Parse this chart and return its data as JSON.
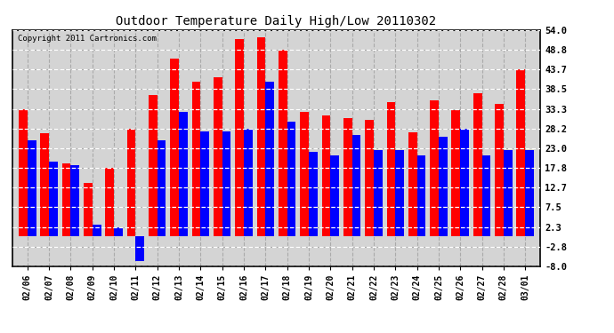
{
  "title": "Outdoor Temperature Daily High/Low 20110302",
  "copyright": "Copyright 2011 Cartronics.com",
  "dates": [
    "02/06",
    "02/07",
    "02/08",
    "02/09",
    "02/10",
    "02/11",
    "02/12",
    "02/13",
    "02/14",
    "02/15",
    "02/16",
    "02/17",
    "02/18",
    "02/19",
    "02/20",
    "02/21",
    "02/22",
    "02/23",
    "02/24",
    "02/25",
    "02/26",
    "02/27",
    "02/28",
    "03/01"
  ],
  "highs": [
    33.3,
    27.0,
    19.0,
    14.0,
    17.8,
    28.2,
    37.0,
    46.5,
    40.5,
    41.5,
    51.5,
    52.0,
    48.8,
    32.5,
    31.5,
    31.0,
    30.5,
    35.0,
    27.2,
    35.5,
    33.0,
    37.5,
    34.5,
    43.7
  ],
  "lows": [
    25.0,
    19.5,
    18.5,
    3.0,
    2.3,
    -6.5,
    25.0,
    32.5,
    27.5,
    27.5,
    28.2,
    40.5,
    30.0,
    22.0,
    21.0,
    26.5,
    22.5,
    22.5,
    21.0,
    26.0,
    28.2,
    21.0,
    22.5,
    22.5
  ],
  "high_color": "#ff0000",
  "low_color": "#0000ff",
  "plot_bg_color": "#d4d4d4",
  "fig_bg_color": "#ffffff",
  "grid_color_dash": "#aaaaaa",
  "grid_color_white": "#ffffff",
  "yticks": [
    -8.0,
    -2.8,
    2.3,
    7.5,
    12.7,
    17.8,
    23.0,
    28.2,
    33.3,
    38.5,
    43.7,
    48.8,
    54.0
  ],
  "ylim": [
    -8.0,
    54.0
  ],
  "bar_width": 0.4
}
